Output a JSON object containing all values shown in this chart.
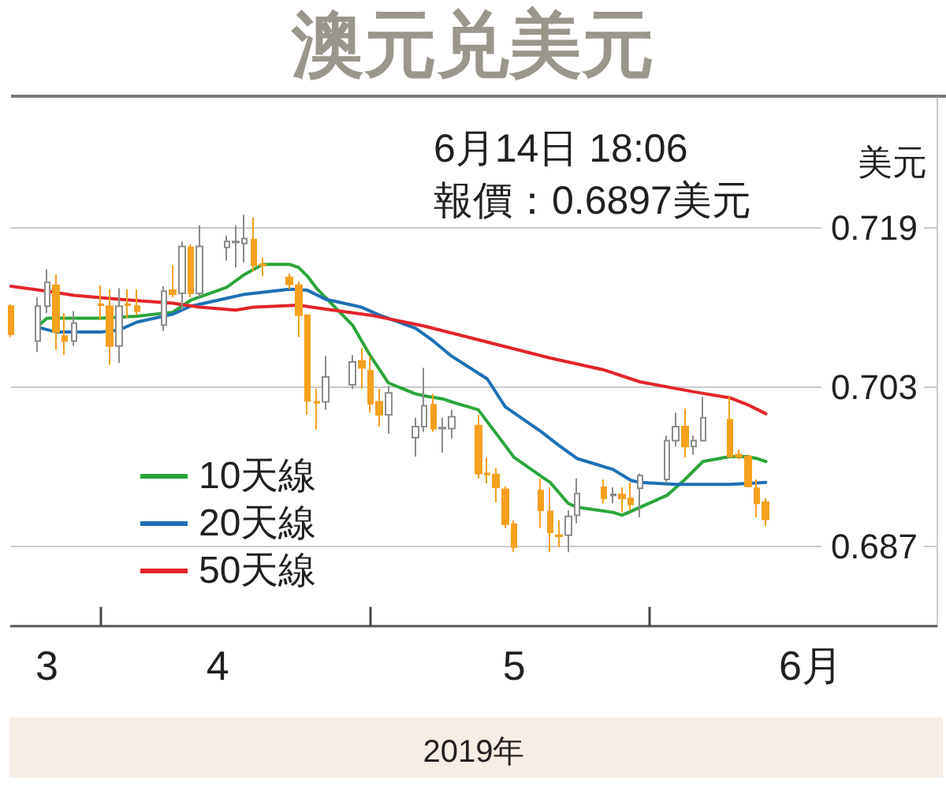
{
  "chart_data": {
    "type": "candlestick",
    "title": "澳元兑美元",
    "annotations": [
      "6月14日 18:06",
      "報價：0.6897美元"
    ],
    "xlabel": "2019年",
    "ylabel": "美元",
    "x": [
      "2019-03-22",
      "2019-03-25",
      "2019-03-26",
      "2019-03-27",
      "2019-03-28",
      "2019-03-29",
      "2019-04-01",
      "2019-04-02",
      "2019-04-03",
      "2019-04-04",
      "2019-04-05",
      "2019-04-08",
      "2019-04-09",
      "2019-04-10",
      "2019-04-11",
      "2019-04-12",
      "2019-04-15",
      "2019-04-16",
      "2019-04-17",
      "2019-04-18",
      "2019-04-19",
      "2019-04-22",
      "2019-04-23",
      "2019-04-24",
      "2019-04-25",
      "2019-04-26",
      "2019-04-29",
      "2019-04-30",
      "2019-05-01",
      "2019-05-02",
      "2019-05-03",
      "2019-05-06",
      "2019-05-07",
      "2019-05-08",
      "2019-05-09",
      "2019-05-10",
      "2019-05-13",
      "2019-05-14",
      "2019-05-15",
      "2019-05-16",
      "2019-05-17",
      "2019-05-20",
      "2019-05-21",
      "2019-05-22",
      "2019-05-23",
      "2019-05-24",
      "2019-05-27",
      "2019-05-28",
      "2019-05-29",
      "2019-05-30",
      "2019-05-31",
      "2019-06-03",
      "2019-06-04",
      "2019-06-05",
      "2019-06-06",
      "2019-06-07",
      "2019-06-10",
      "2019-06-11",
      "2019-06-12",
      "2019-06-13",
      "2019-06-14"
    ],
    "ohlc": [
      [
        0.7111,
        0.7113,
        0.708,
        0.7083
      ],
      [
        0.7076,
        0.712,
        0.7065,
        0.7111
      ],
      [
        0.7111,
        0.7148,
        0.7104,
        0.7135
      ],
      [
        0.7132,
        0.7143,
        0.7067,
        0.7085
      ],
      [
        0.7081,
        0.7104,
        0.7062,
        0.7076
      ],
      [
        0.7076,
        0.7106,
        0.7071,
        0.7094
      ],
      [
        0.7113,
        0.7132,
        0.7097,
        0.7112
      ],
      [
        0.7111,
        0.7128,
        0.7052,
        0.7071
      ],
      [
        0.7071,
        0.7129,
        0.7054,
        0.7111
      ],
      [
        0.7113,
        0.7128,
        0.7099,
        0.7112
      ],
      [
        0.7111,
        0.7128,
        0.7102,
        0.7106
      ],
      [
        0.7092,
        0.7131,
        0.7086,
        0.7126
      ],
      [
        0.7127,
        0.7152,
        0.712,
        0.7123
      ],
      [
        0.7124,
        0.7176,
        0.7107,
        0.7171
      ],
      [
        0.717,
        0.7173,
        0.712,
        0.7124
      ],
      [
        0.7124,
        0.7192,
        0.712,
        0.7171
      ],
      [
        0.717,
        0.7182,
        0.7157,
        0.7176
      ],
      [
        0.7175,
        0.7192,
        0.715,
        0.7176
      ],
      [
        0.7174,
        0.7203,
        0.7155,
        0.7179
      ],
      [
        0.7178,
        0.72,
        0.7146,
        0.7152
      ],
      [
        0.7153,
        0.716,
        0.7141,
        0.7152
      ],
      [
        0.714,
        0.7144,
        0.7128,
        0.7133
      ],
      [
        0.7132,
        0.7136,
        0.708,
        0.7102
      ],
      [
        0.7102,
        0.7103,
        0.7002,
        0.7016
      ],
      [
        0.7015,
        0.7028,
        0.6987,
        0.7014
      ],
      [
        0.7015,
        0.7061,
        0.7007,
        0.704
      ],
      [
        0.7032,
        0.7062,
        0.7028,
        0.7055
      ],
      [
        0.7056,
        0.7069,
        0.7028,
        0.7049
      ],
      [
        0.7046,
        0.7061,
        0.7004,
        0.7013
      ],
      [
        0.7015,
        0.7028,
        0.699,
        0.7002
      ],
      [
        0.7002,
        0.7031,
        0.6983,
        0.7024
      ],
      [
        0.6979,
        0.6999,
        0.696,
        0.699
      ],
      [
        0.699,
        0.7049,
        0.6985,
        0.7011
      ],
      [
        0.7012,
        0.7023,
        0.6985,
        0.6988
      ],
      [
        0.6988,
        0.6999,
        0.6964,
        0.6989
      ],
      [
        0.6988,
        0.7007,
        0.6978,
        0.7
      ],
      [
        0.6991,
        0.7002,
        0.6938,
        0.6943
      ],
      [
        0.6943,
        0.6959,
        0.6933,
        0.6942
      ],
      [
        0.6942,
        0.6948,
        0.6914,
        0.6929
      ],
      [
        0.6927,
        0.693,
        0.6888,
        0.6892
      ],
      [
        0.6892,
        0.6896,
        0.6864,
        0.6869
      ],
      [
        0.6926,
        0.6938,
        0.6888,
        0.6906
      ],
      [
        0.6905,
        0.6929,
        0.6864,
        0.6884
      ],
      [
        0.6881,
        0.6896,
        0.6869,
        0.688
      ],
      [
        0.6881,
        0.6906,
        0.6864,
        0.69
      ],
      [
        0.6901,
        0.6938,
        0.6893,
        0.6923
      ],
      [
        0.6929,
        0.6937,
        0.6913,
        0.6918
      ],
      [
        0.6921,
        0.6929,
        0.6913,
        0.6922
      ],
      [
        0.6922,
        0.6929,
        0.6904,
        0.6918
      ],
      [
        0.6918,
        0.6934,
        0.6906,
        0.6912
      ],
      [
        0.6928,
        0.6943,
        0.6899,
        0.6941
      ],
      [
        0.6937,
        0.6981,
        0.6933,
        0.6976
      ],
      [
        0.6976,
        0.7004,
        0.697,
        0.699
      ],
      [
        0.699,
        0.7008,
        0.6959,
        0.697
      ],
      [
        0.697,
        0.6981,
        0.6962,
        0.6976
      ],
      [
        0.6976,
        0.702,
        0.6975,
        0.6999
      ],
      [
        0.6997,
        0.702,
        0.6959,
        0.696
      ],
      [
        0.6962,
        0.6967,
        0.6957,
        0.696
      ],
      [
        0.696,
        0.6962,
        0.6929,
        0.693
      ],
      [
        0.6928,
        0.6937,
        0.6899,
        0.6913
      ],
      [
        0.6914,
        0.6918,
        0.689,
        0.6897
      ]
    ],
    "colors": [
      "#f5a01e",
      "#8c8c8c",
      "#8c8c8c",
      "#f5a01e",
      "#f5a01e",
      "#8c8c8c",
      "#f5a01e",
      "#f5a01e",
      "#8c8c8c",
      "#f5a01e",
      "#f5a01e",
      "#8c8c8c",
      "#f5a01e",
      "#8c8c8c",
      "#f5a01e",
      "#8c8c8c",
      "#8c8c8c",
      "#8c8c8c",
      "#8c8c8c",
      "#f5a01e",
      "#f5a01e",
      "#f5a01e",
      "#f5a01e",
      "#f5a01e",
      "#f5a01e",
      "#8c8c8c",
      "#8c8c8c",
      "#f5a01e",
      "#f5a01e",
      "#f5a01e",
      "#8c8c8c",
      "#8c8c8c",
      "#8c8c8c",
      "#f5a01e",
      "#8c8c8c",
      "#8c8c8c",
      "#f5a01e",
      "#f5a01e",
      "#f5a01e",
      "#f5a01e",
      "#f5a01e",
      "#f5a01e",
      "#f5a01e",
      "#f5a01e",
      "#8c8c8c",
      "#8c8c8c",
      "#f5a01e",
      "#8c8c8c",
      "#f5a01e",
      "#f5a01e",
      "#8c8c8c",
      "#8c8c8c",
      "#8c8c8c",
      "#f5a01e",
      "#8c8c8c",
      "#8c8c8c",
      "#f5a01e",
      "#f5a01e",
      "#f5a01e",
      "#f5a01e",
      "#f5a01e"
    ],
    "series": [
      {
        "name": "10天線",
        "type": "line",
        "color": "#2ca53c",
        "x": [
          "2019-03-25",
          "2019-03-26",
          "2019-04-01",
          "2019-04-05",
          "2019-04-09",
          "2019-04-11",
          "2019-04-15",
          "2019-04-17",
          "2019-04-19",
          "2019-04-22",
          "2019-04-23",
          "2019-04-24",
          "2019-04-25",
          "2019-04-29",
          "2019-05-01",
          "2019-05-03",
          "2019-05-06",
          "2019-05-07",
          "2019-05-09",
          "2019-05-10",
          "2019-05-13",
          "2019-05-15",
          "2019-05-17",
          "2019-05-21",
          "2019-05-23",
          "2019-05-24",
          "2019-05-28",
          "2019-05-29",
          "2019-05-30",
          "2019-06-03",
          "2019-06-05",
          "2019-06-07",
          "2019-06-10",
          "2019-06-12",
          "2019-06-13",
          "2019-06-14"
        ],
        "values": [
          0.7091,
          0.7099,
          0.7099,
          0.7101,
          0.7105,
          0.7117,
          0.713,
          0.7143,
          0.7153,
          0.7153,
          0.715,
          0.7141,
          0.7129,
          0.7092,
          0.7061,
          0.7034,
          0.7023,
          0.7021,
          0.7018,
          0.7015,
          0.7007,
          0.6983,
          0.6959,
          0.6934,
          0.6913,
          0.6909,
          0.6904,
          0.6901,
          0.6905,
          0.6921,
          0.6937,
          0.6955,
          0.696,
          0.696,
          0.6958,
          0.6955
        ]
      },
      {
        "name": "20天線",
        "type": "line",
        "color": "#1f6fb5",
        "x": [
          "2019-03-25",
          "2019-03-27",
          "2019-04-01",
          "2019-04-03",
          "2019-04-05",
          "2019-04-09",
          "2019-04-11",
          "2019-04-15",
          "2019-04-17",
          "2019-04-22",
          "2019-04-24",
          "2019-04-26",
          "2019-04-30",
          "2019-05-02",
          "2019-05-06",
          "2019-05-08",
          "2019-05-10",
          "2019-05-14",
          "2019-05-16",
          "2019-05-20",
          "2019-05-22",
          "2019-05-24",
          "2019-05-28",
          "2019-05-30",
          "2019-05-31",
          "2019-06-04",
          "2019-06-06",
          "2019-06-10",
          "2019-06-12",
          "2019-06-14"
        ],
        "values": [
          0.709,
          0.7085,
          0.7085,
          0.7087,
          0.7095,
          0.7103,
          0.7111,
          0.7119,
          0.7123,
          0.7128,
          0.7127,
          0.7118,
          0.711,
          0.7102,
          0.7089,
          0.7076,
          0.7061,
          0.7038,
          0.701,
          0.6985,
          0.6971,
          0.6958,
          0.6947,
          0.6936,
          0.6934,
          0.6932,
          0.6932,
          0.6932,
          0.6933,
          0.6934
        ]
      },
      {
        "name": "50天線",
        "type": "line",
        "color": "#e3242b",
        "x": [
          "2019-03-22",
          "2019-03-26",
          "2019-03-29",
          "2019-04-03",
          "2019-04-09",
          "2019-04-12",
          "2019-04-16",
          "2019-04-18",
          "2019-04-23",
          "2019-04-26",
          "2019-05-01",
          "2019-05-07",
          "2019-05-14",
          "2019-05-21",
          "2019-05-27",
          "2019-05-31",
          "2019-06-06",
          "2019-06-10",
          "2019-06-12",
          "2019-06-14"
        ],
        "values": [
          0.7131,
          0.7126,
          0.7122,
          0.7118,
          0.7114,
          0.711,
          0.7107,
          0.711,
          0.7112,
          0.7108,
          0.7102,
          0.7091,
          0.7075,
          0.7059,
          0.7047,
          0.7035,
          0.7025,
          0.7019,
          0.7012,
          0.7003
        ]
      }
    ],
    "xlim": [
      "2019-03-22",
      "2019-07-03"
    ],
    "xticks": [
      {
        "value": "2019-03-26",
        "label": "3"
      },
      {
        "value": "2019-04-01",
        "label": null
      },
      {
        "value": "2019-04-14",
        "label": "4"
      },
      {
        "value": "2019-05-01",
        "label": null
      },
      {
        "value": "2019-05-17",
        "label": "5"
      },
      {
        "value": "2019-06-01",
        "label": null
      },
      {
        "value": "2019-06-19",
        "label": "6月"
      }
    ],
    "ylim": [
      0.679,
      0.732
    ],
    "yticks": [
      0.719,
      0.703,
      0.687
    ],
    "grid": "y",
    "legend": "left",
    "marker": "none"
  }
}
